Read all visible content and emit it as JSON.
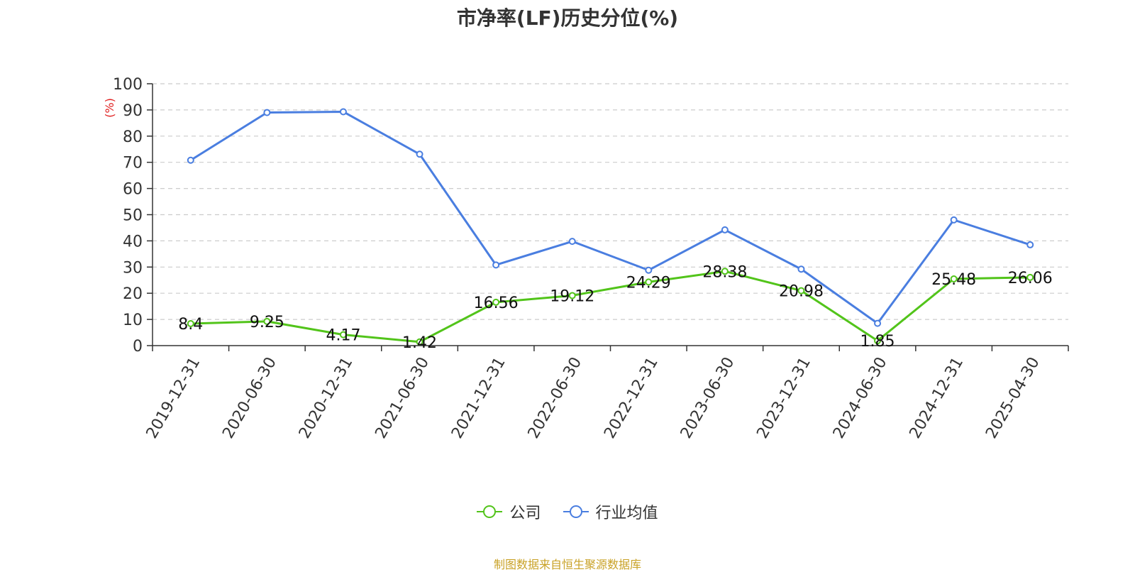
{
  "chart_data": {
    "type": "line",
    "title": "市净率(LF)历史分位(%)",
    "ylabel": "(%)",
    "xlabel": "",
    "ylim": [
      0,
      100
    ],
    "yticks": [
      0,
      10,
      20,
      30,
      40,
      50,
      60,
      70,
      80,
      90,
      100
    ],
    "grid": true,
    "legend_position": "bottom-center",
    "categories": [
      "2019-12-31",
      "2020-06-30",
      "2020-12-31",
      "2021-06-30",
      "2021-12-31",
      "2022-06-30",
      "2022-12-31",
      "2023-06-30",
      "2023-12-31",
      "2024-06-30",
      "2024-12-31",
      "2025-04-30"
    ],
    "series": [
      {
        "name": "公司",
        "color": "#52c41a",
        "values": [
          8.4,
          9.25,
          4.17,
          1.42,
          16.56,
          19.12,
          24.29,
          28.38,
          20.98,
          1.85,
          25.48,
          26.06
        ],
        "labels": [
          "8.4",
          "9.25",
          "4.17",
          "1.42",
          "16.56",
          "19.12",
          "24.29",
          "28.38",
          "20.98",
          "1.85",
          "25.48",
          "26.06"
        ]
      },
      {
        "name": "行业均值",
        "color": "#4a7ee0",
        "values": [
          70.8,
          89.0,
          89.3,
          73.1,
          30.8,
          39.8,
          28.8,
          44.2,
          29.2,
          8.5,
          48.0,
          38.5
        ]
      }
    ],
    "source_note": "制图数据来自恒生聚源数据库"
  }
}
